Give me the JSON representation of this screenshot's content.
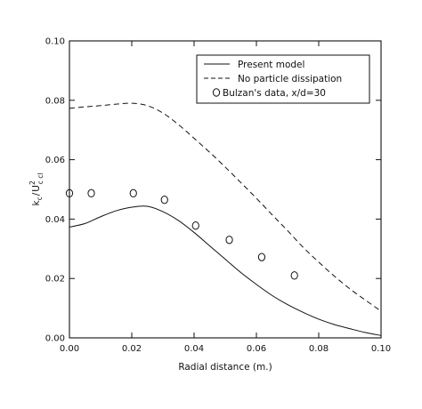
{
  "chart_data": {
    "type": "line",
    "title": "",
    "xlabel": "Radial distance (m.)",
    "ylabel_main": "k",
    "ylabel_main_sub": "c",
    "ylabel_div": "/",
    "ylabel_den": "U",
    "ylabel_den_sup": "2",
    "ylabel_den_sub": "c cl",
    "xlim": [
      0.0,
      0.1
    ],
    "ylim": [
      0.0,
      0.1
    ],
    "xticks": [
      0.0,
      0.02,
      0.04,
      0.06,
      0.08,
      0.1
    ],
    "yticks": [
      0.0,
      0.02,
      0.04,
      0.06,
      0.08,
      0.1
    ],
    "xtick_labels": [
      "0.00",
      "0.02",
      "0.04",
      "0.06",
      "0.08",
      "0.10"
    ],
    "ytick_labels": [
      "0.00",
      "0.02",
      "0.04",
      "0.06",
      "0.08",
      "0.10"
    ],
    "grid": false,
    "legend_position": "top-right",
    "series": [
      {
        "name": "Present model",
        "style": "solid",
        "x": [
          0.0,
          0.005,
          0.01,
          0.015,
          0.02,
          0.025,
          0.03,
          0.035,
          0.04,
          0.045,
          0.05,
          0.055,
          0.06,
          0.065,
          0.07,
          0.075,
          0.08,
          0.085,
          0.09,
          0.095,
          0.1
        ],
        "y": [
          0.0373,
          0.0385,
          0.0408,
          0.0428,
          0.044,
          0.0443,
          0.0425,
          0.0395,
          0.0355,
          0.031,
          0.0265,
          0.022,
          0.018,
          0.0143,
          0.0112,
          0.0086,
          0.0063,
          0.0045,
          0.0031,
          0.0018,
          0.0008
        ]
      },
      {
        "name": "No particle dissipation",
        "style": "dashed",
        "x": [
          0.0,
          0.005,
          0.01,
          0.015,
          0.02,
          0.025,
          0.03,
          0.035,
          0.04,
          0.045,
          0.05,
          0.055,
          0.06,
          0.065,
          0.07,
          0.075,
          0.08,
          0.085,
          0.09,
          0.095,
          0.1
        ],
        "y": [
          0.0773,
          0.0778,
          0.0782,
          0.0787,
          0.079,
          0.0782,
          0.0757,
          0.0718,
          0.0672,
          0.0625,
          0.0575,
          0.0523,
          0.047,
          0.0415,
          0.0361,
          0.0305,
          0.0255,
          0.0208,
          0.0165,
          0.0127,
          0.009
        ]
      },
      {
        "name": "Bulzan's data, x/d=30",
        "style": "markers",
        "x": [
          0.0,
          0.007,
          0.0205,
          0.0305,
          0.0405,
          0.0513,
          0.0617,
          0.0722
        ],
        "y": [
          0.0487,
          0.0487,
          0.0487,
          0.0465,
          0.0378,
          0.033,
          0.0272,
          0.021
        ]
      }
    ]
  }
}
